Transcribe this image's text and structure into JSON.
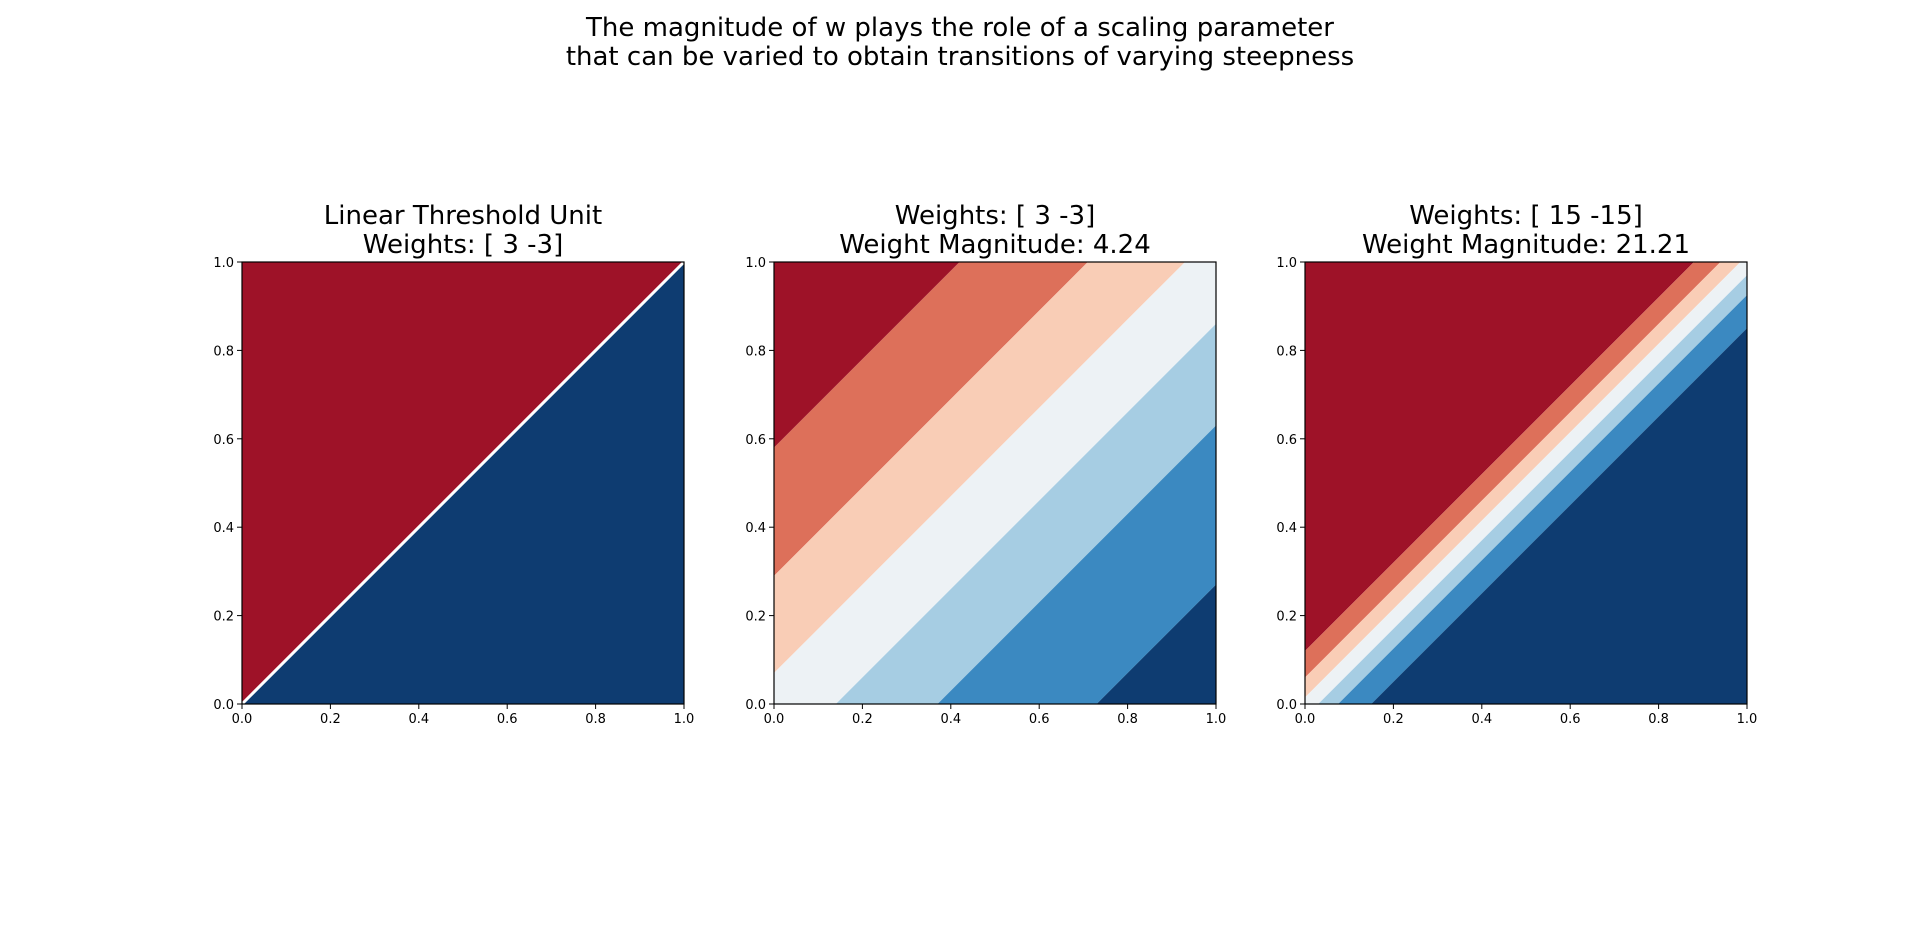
{
  "suptitle": {
    "line1": "The magnitude of w plays the role of a scaling parameter",
    "line2": "that can be varied to obtain transitions of varying steepness"
  },
  "colors": {
    "levels": [
      "#9e1228",
      "#dd705a",
      "#f9cdb6",
      "#edf2f5",
      "#a6cde3",
      "#3b89c1",
      "#0e3c71"
    ],
    "threshold_line": "#ffffff",
    "axes": "#000000"
  },
  "chart_data": [
    {
      "type": "heatmap",
      "title_lines": [
        "Linear Threshold Unit",
        "Weights: [ 3 -3]"
      ],
      "weights": [
        3,
        -3
      ],
      "mode": "threshold",
      "xlim": [
        0,
        1
      ],
      "ylim": [
        0,
        1
      ],
      "xticks": [
        "0.0",
        "0.2",
        "0.4",
        "0.6",
        "0.8",
        "1.0"
      ],
      "yticks": [
        "0.0",
        "0.2",
        "0.4",
        "0.6",
        "0.8",
        "1.0"
      ],
      "regions": [
        {
          "label": "above line (x2 > x1)",
          "color": "#9e1228"
        },
        {
          "label": "below line (x2 < x1)",
          "color": "#0e3c71"
        }
      ],
      "boundary": "x2 = x1"
    },
    {
      "type": "heatmap",
      "title_lines": [
        "Weights: [ 3 -3]",
        "Weight Magnitude: 4.24"
      ],
      "weights": [
        3,
        -3
      ],
      "magnitude": 4.24,
      "mode": "contour",
      "xlim": [
        0,
        1
      ],
      "ylim": [
        0,
        1
      ],
      "xticks": [
        "0.0",
        "0.2",
        "0.4",
        "0.6",
        "0.8",
        "1.0"
      ],
      "yticks": [
        "0.0",
        "0.2",
        "0.4",
        "0.6",
        "0.8",
        "1.0"
      ],
      "band_boundaries_d": [
        0.58,
        0.29,
        0.07,
        -0.14,
        -0.37,
        -0.73
      ]
    },
    {
      "type": "heatmap",
      "title_lines": [
        "Weights: [ 15 -15]",
        "Weight Magnitude: 21.21"
      ],
      "weights": [
        15,
        -15
      ],
      "magnitude": 21.21,
      "mode": "contour",
      "xlim": [
        0,
        1
      ],
      "ylim": [
        0,
        1
      ],
      "xticks": [
        "0.0",
        "0.2",
        "0.4",
        "0.6",
        "0.8",
        "1.0"
      ],
      "yticks": [
        "0.0",
        "0.2",
        "0.4",
        "0.6",
        "0.8",
        "1.0"
      ],
      "band_boundaries_d": [
        0.12,
        0.06,
        0.015,
        -0.03,
        -0.075,
        -0.15
      ]
    }
  ]
}
